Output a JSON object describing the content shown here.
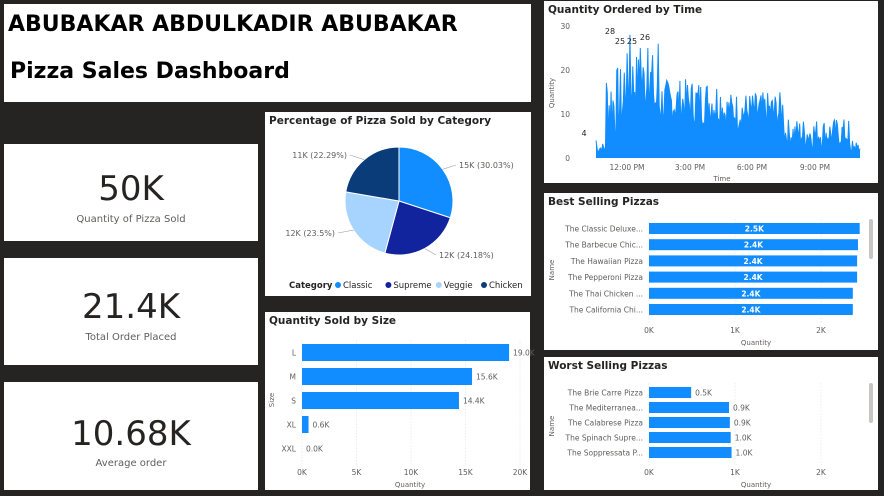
{
  "header": {
    "name": "ABUBAKAR ABDULKADIR ABUBAKAR",
    "title": "Pizza Sales Dashboard"
  },
  "kpis": [
    {
      "value": "50K",
      "label": "Quantity of Pizza Sold"
    },
    {
      "value": "21.4K",
      "label": "Total Order Placed"
    },
    {
      "value": "10.68K",
      "label": "Average order"
    }
  ],
  "colors": {
    "classic": "#118DFF",
    "supreme": "#12239E",
    "veggie": "#A7D3FF",
    "chicken": "#0B3C7A",
    "bar": "#118DFF"
  },
  "time_chart": {
    "title": "Quantity Ordered by Time",
    "ylabel": "Quantity",
    "xlabel": "Time",
    "y_ticks": [
      "0",
      "10",
      "20",
      "30"
    ],
    "x_ticks": [
      "12:00 PM",
      "3:00 PM",
      "6:00 PM",
      "9:00 PM"
    ],
    "annotations": [
      "4",
      "28",
      "25",
      "25",
      "26"
    ]
  },
  "category_chart": {
    "title": "Percentage of Pizza Sold by Category",
    "legend_title": "Category",
    "slices": [
      {
        "name": "Classic",
        "value": 30.03,
        "label": "15K (30.03%)",
        "color": "#118DFF"
      },
      {
        "name": "Supreme",
        "value": 24.18,
        "label": "12K (24.18%)",
        "color": "#12239E"
      },
      {
        "name": "Veggie",
        "value": 23.5,
        "label": "12K (23.5%)",
        "color": "#A7D3FF"
      },
      {
        "name": "Chicken",
        "value": 22.29,
        "label": "11K (22.29%)",
        "color": "#0B3C7A"
      }
    ]
  },
  "size_chart": {
    "title": "Quantity Sold by Size",
    "ylabel": "Size",
    "xlabel": "Quantity",
    "categories": [
      "L",
      "M",
      "S",
      "XL",
      "XXL"
    ],
    "values": [
      19.0,
      15.6,
      14.4,
      0.6,
      0.0
    ],
    "labels": [
      "19.0K",
      "15.6K",
      "14.4K",
      "0.6K",
      "0.0K"
    ],
    "x_ticks": [
      "0K",
      "5K",
      "10K",
      "15K",
      "20K"
    ],
    "xmax": 20
  },
  "best_chart": {
    "title": "Best Selling Pizzas",
    "ylabel": "Name",
    "xlabel": "Quantity",
    "categories": [
      "The Classic Deluxe...",
      "The Barbecue Chic...",
      "The Hawaiian Pizza",
      "The Pepperoni Pizza",
      "The Thai Chicken ...",
      "The California Chi..."
    ],
    "values": [
      2.45,
      2.43,
      2.42,
      2.42,
      2.37,
      2.37
    ],
    "labels": [
      "2.5K",
      "2.4K",
      "2.4K",
      "2.4K",
      "2.4K",
      "2.4K"
    ],
    "x_ticks": [
      "0K",
      "1K",
      "2K"
    ],
    "xmax": 2.5
  },
  "worst_chart": {
    "title": "Worst Selling Pizzas",
    "ylabel": "Name",
    "xlabel": "Quantity",
    "categories": [
      "The Brie Carre Pizza",
      "The Mediterranea...",
      "The Calabrese Pizza",
      "The Spinach Supre...",
      "The Soppressata P..."
    ],
    "values": [
      0.49,
      0.93,
      0.94,
      0.95,
      0.96
    ],
    "labels": [
      "0.5K",
      "0.9K",
      "0.9K",
      "1.0K",
      "1.0K"
    ],
    "x_ticks": [
      "0K",
      "1K",
      "2K"
    ],
    "xmax": 2.5
  },
  "chart_data": [
    {
      "type": "line",
      "title": "Quantity Ordered by Time",
      "xlabel": "Time",
      "ylabel": "Quantity",
      "ylim": [
        0,
        30
      ],
      "x_ticks": [
        "12:00 PM",
        "3:00 PM",
        "6:00 PM",
        "9:00 PM"
      ],
      "annotations": [
        4,
        28,
        25,
        25,
        26
      ]
    },
    {
      "type": "pie",
      "title": "Percentage of Pizza Sold by Category",
      "categories": [
        "Classic",
        "Supreme",
        "Veggie",
        "Chicken"
      ],
      "values": [
        30.03,
        24.18,
        23.5,
        22.29
      ],
      "labels": [
        "15K (30.03%)",
        "12K (24.18%)",
        "12K (23.5%)",
        "11K (22.29%)"
      ]
    },
    {
      "type": "bar",
      "title": "Quantity Sold by Size",
      "categories": [
        "L",
        "M",
        "S",
        "XL",
        "XXL"
      ],
      "values": [
        19.0,
        15.6,
        14.4,
        0.6,
        0.0
      ],
      "xlabel": "Quantity",
      "ylabel": "Size",
      "xlim": [
        0,
        20
      ]
    },
    {
      "type": "bar",
      "title": "Best Selling Pizzas",
      "categories": [
        "The Classic Deluxe...",
        "The Barbecue Chic...",
        "The Hawaiian Pizza",
        "The Pepperoni Pizza",
        "The Thai Chicken ...",
        "The California Chi..."
      ],
      "values": [
        2.45,
        2.43,
        2.42,
        2.42,
        2.37,
        2.37
      ],
      "xlabel": "Quantity",
      "ylabel": "Name"
    },
    {
      "type": "bar",
      "title": "Worst Selling Pizzas",
      "categories": [
        "The Brie Carre Pizza",
        "The Mediterranea...",
        "The Calabrese Pizza",
        "The Spinach Supre...",
        "The Soppressata P..."
      ],
      "values": [
        0.49,
        0.93,
        0.94,
        0.95,
        0.96
      ],
      "xlabel": "Quantity",
      "ylabel": "Name"
    }
  ]
}
